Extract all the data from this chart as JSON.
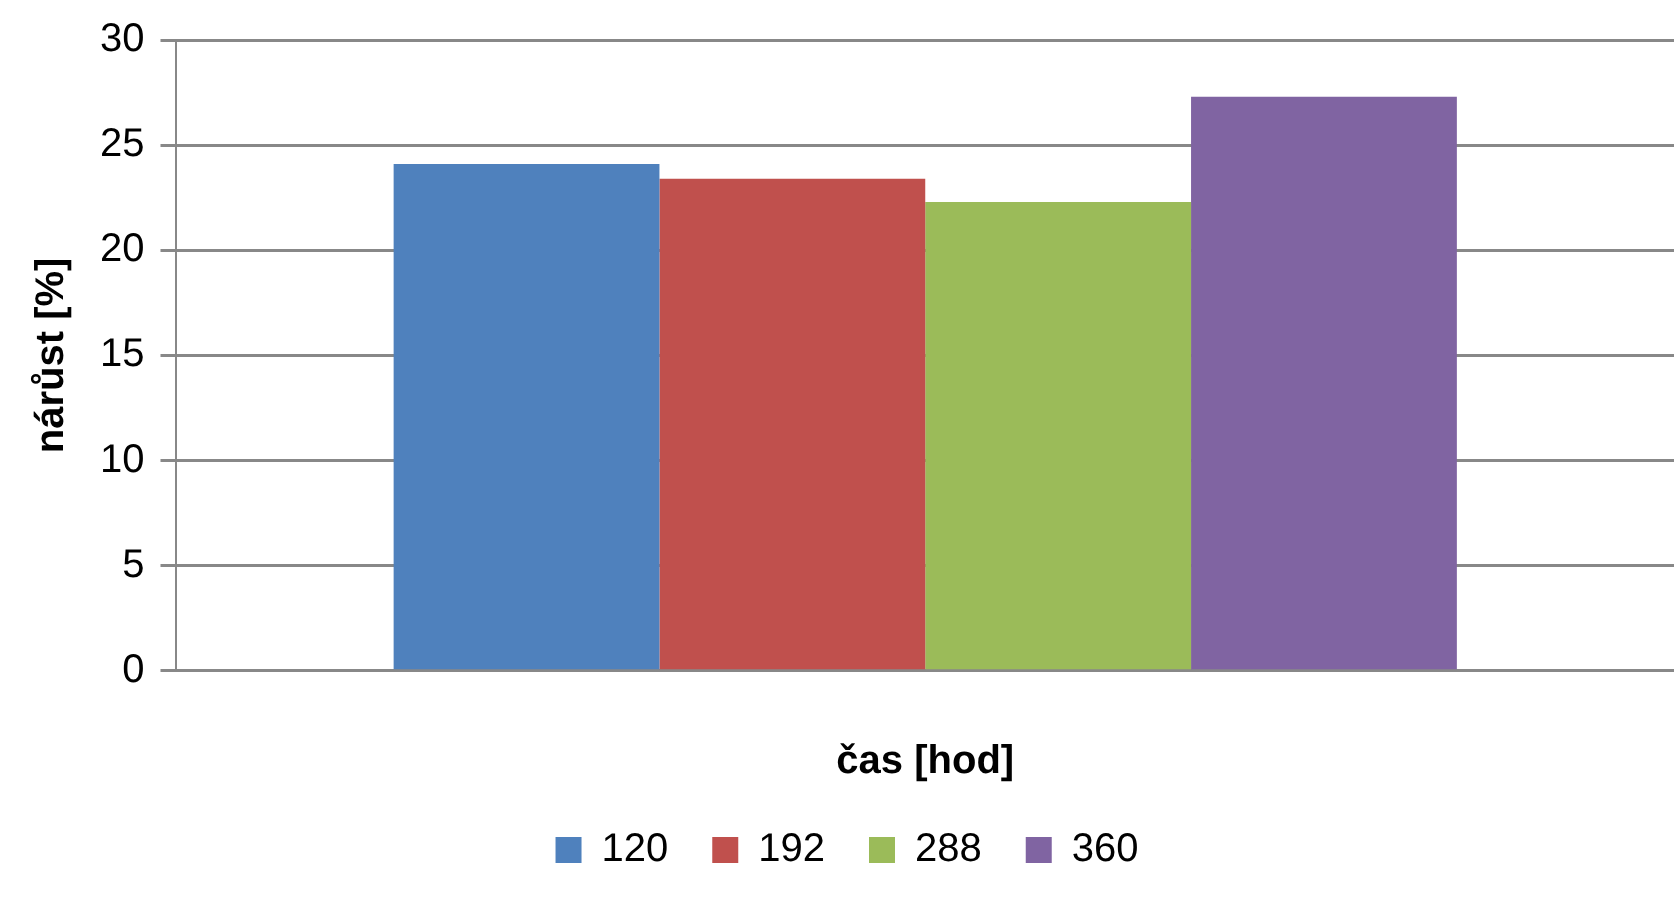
{
  "chart_data": {
    "type": "bar",
    "xlabel": "čas [hod]",
    "ylabel": "nárůst [%]",
    "categories": [
      null
    ],
    "series": [
      {
        "name": "120",
        "color": "#4f81bd",
        "values": [
          24.1
        ]
      },
      {
        "name": "192",
        "color": "#c0504d",
        "values": [
          23.4
        ]
      },
      {
        "name": "288",
        "color": "#9bbb59",
        "values": [
          22.3
        ]
      },
      {
        "name": "360",
        "color": "#8064a2",
        "values": [
          27.3
        ]
      }
    ],
    "ylim": [
      0,
      30
    ],
    "yticks": [
      0,
      5,
      10,
      15,
      20,
      25,
      30
    ],
    "grid": "y",
    "legend": "bottom"
  }
}
